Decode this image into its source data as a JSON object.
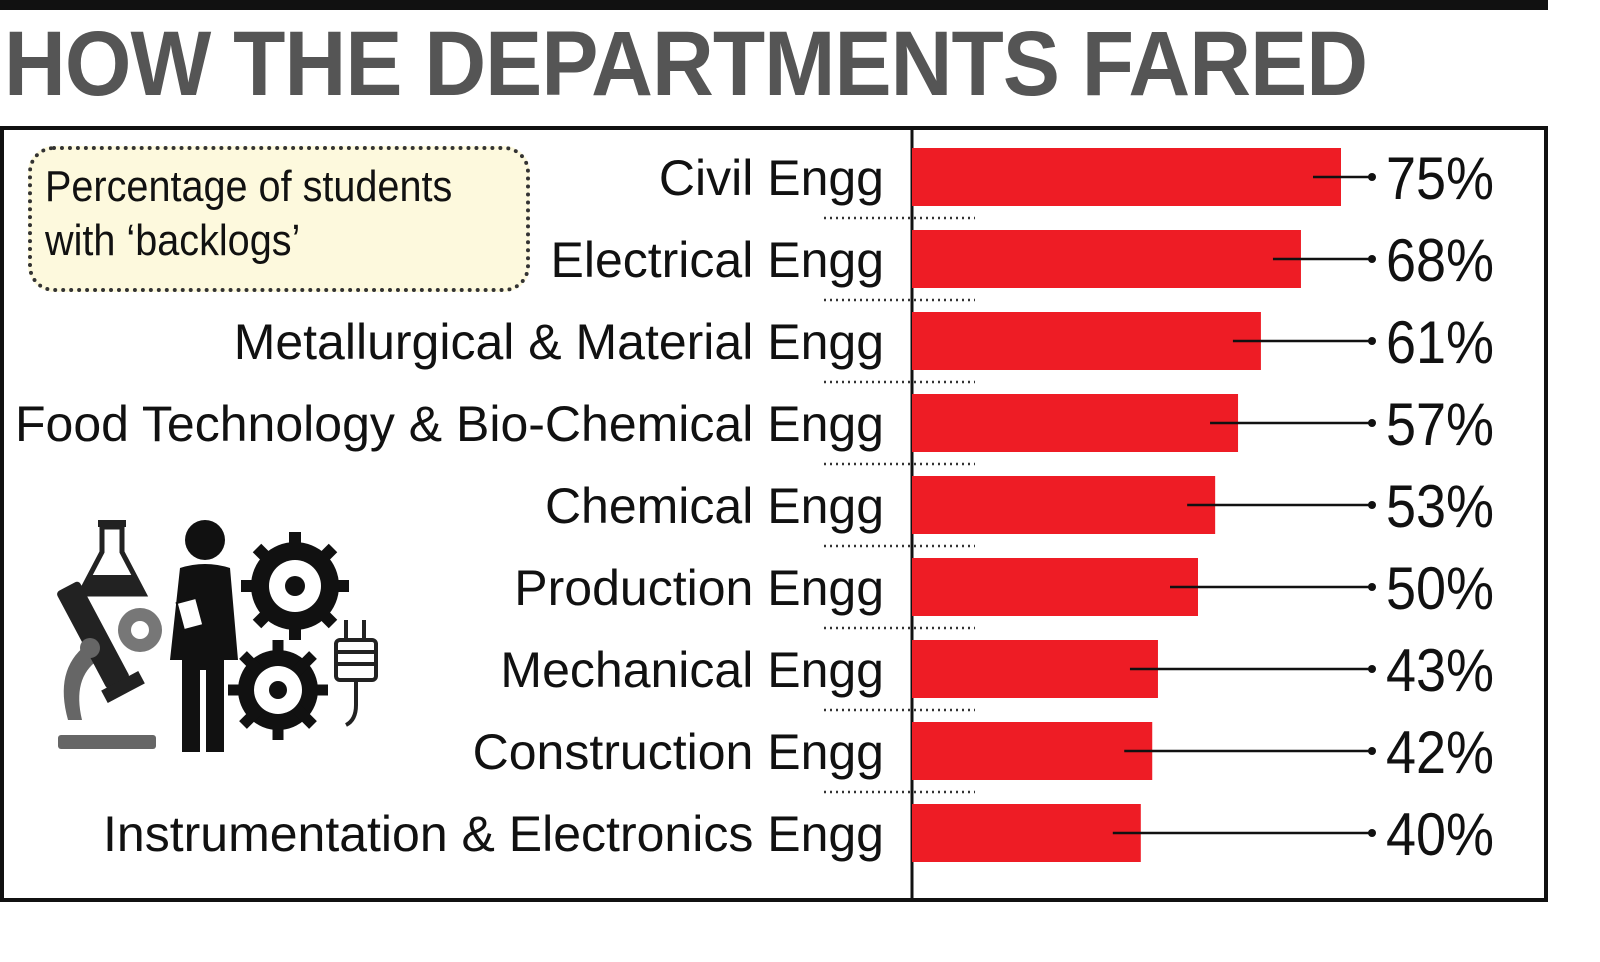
{
  "headline": "HOW THE DEPARTMENTS FARED",
  "note": "Percentage of students with ‘backlogs’",
  "colors": {
    "bar": "#ee1c25",
    "headline": "#555555",
    "ink": "#111111",
    "note_bg": "#fdf9dd"
  },
  "illustration": {
    "icons": [
      "flask-icon",
      "microscope-icon",
      "engineer-icon",
      "gear-icon",
      "plug-icon"
    ]
  },
  "chart_data": {
    "type": "bar",
    "orientation": "horizontal",
    "title": "HOW THE DEPARTMENTS FARED",
    "subtitle": "Percentage of students with ‘backlogs’",
    "categories": [
      "Civil Engg",
      "Electrical Engg",
      "Metallurgical & Material Engg",
      "Food Technology & Bio-Chemical Engg",
      "Chemical Engg",
      "Production Engg",
      "Mechanical Engg",
      "Construction Engg",
      "Instrumentation & Electronics Engg"
    ],
    "values": [
      75,
      68,
      61,
      57,
      53,
      50,
      43,
      42,
      40
    ],
    "value_labels": [
      "75%",
      "68%",
      "61%",
      "57%",
      "53%",
      "50%",
      "43%",
      "42%",
      "40%"
    ],
    "unit": "%",
    "xlim": [
      0,
      100
    ],
    "grid": false,
    "legend": "none"
  }
}
